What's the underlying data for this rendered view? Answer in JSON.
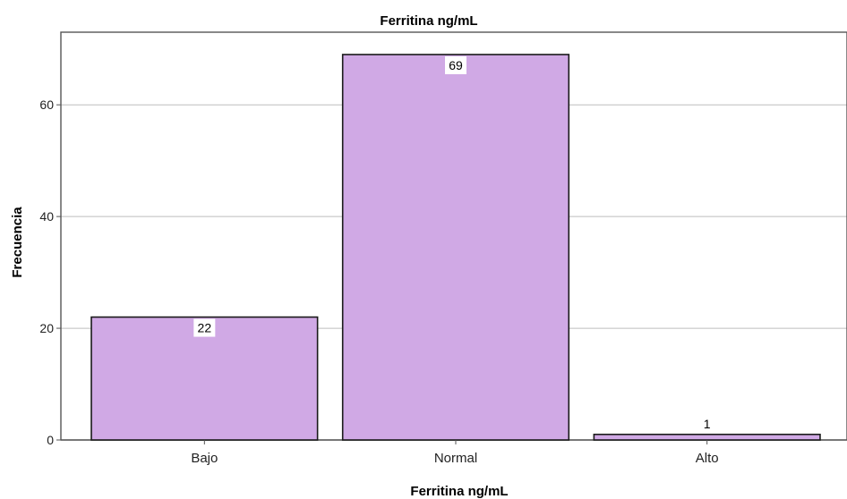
{
  "colors": {
    "bar_fill": "#d0a9e5",
    "bar_stroke": "#1a1a1a",
    "grid": "#bdbdbd",
    "frame": "#555555",
    "label_box": "#ffffff"
  },
  "chart_data": {
    "type": "bar",
    "title": "Ferritina ng/mL",
    "xlabel": "Ferritina ng/mL",
    "ylabel": "Frecuencia",
    "categories": [
      "Bajo",
      "Normal",
      "Alto"
    ],
    "values": [
      22,
      69,
      1
    ],
    "data_labels": [
      "22",
      "69",
      "1"
    ],
    "ylim": [
      0,
      73
    ],
    "yticks": [
      0,
      20,
      40,
      60
    ],
    "ytick_labels": [
      "0",
      "20",
      "40",
      "60"
    ],
    "grid": true,
    "legend": "none"
  }
}
